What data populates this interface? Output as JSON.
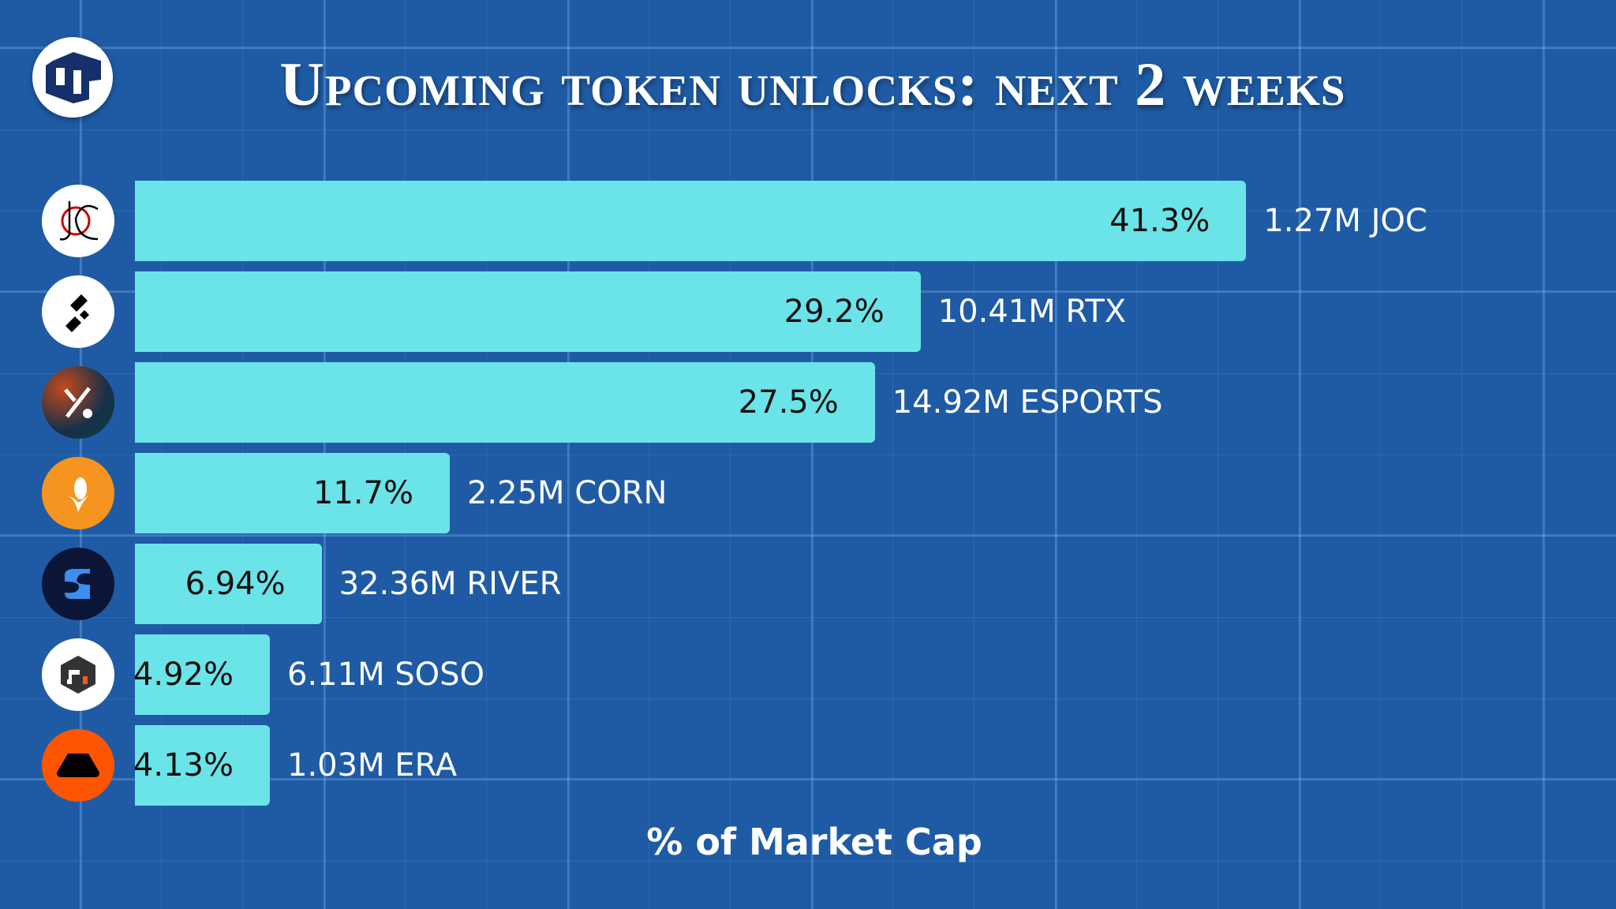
{
  "chart_data": {
    "type": "bar",
    "orientation": "horizontal",
    "title": "Upcoming token unlocks: next 2 weeks",
    "xlabel": "% of Market Cap",
    "ylabel": "",
    "categories": [
      "JOC",
      "RTX",
      "ESPORTS",
      "CORN",
      "RIVER",
      "SOSO",
      "ERA"
    ],
    "values": [
      41.3,
      29.2,
      27.5,
      11.7,
      6.94,
      4.92,
      4.13
    ],
    "value_labels": [
      "41.3%",
      "29.2%",
      "27.5%",
      "11.7%",
      "6.94%",
      "4.92%",
      "4.13%"
    ],
    "unlock_labels": [
      "1.27M JOC",
      "10.41M RTX",
      "14.92M ESPORTS",
      "2.25M CORN",
      "32.36M RIVER",
      "6.11M SOSO",
      "1.03M ERA"
    ],
    "icons": [
      "joc-logo-icon",
      "rtx-logo-icon",
      "esports-logo-icon",
      "corn-logo-icon",
      "river-logo-icon",
      "soso-logo-icon",
      "era-logo-icon"
    ],
    "bar_color": "#6ae4e8",
    "grid": true
  }
}
